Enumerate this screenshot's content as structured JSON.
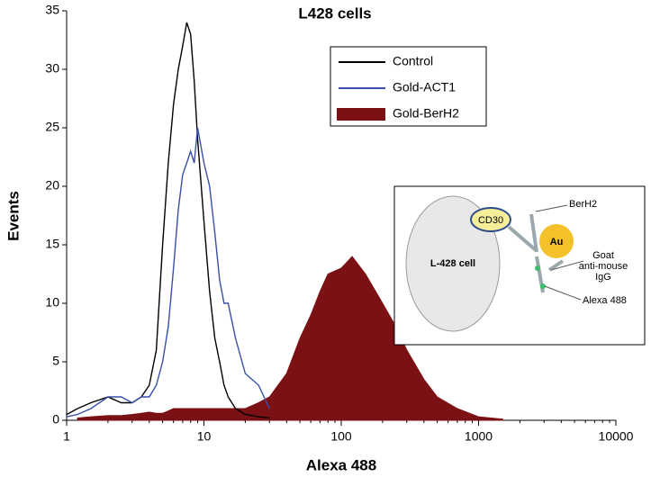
{
  "chart_data": {
    "type": "line",
    "title": "L428 cells",
    "x_label": "Alexa 488",
    "y_label": "Events",
    "xscale": "log",
    "xlim": [
      1,
      10000
    ],
    "xticks": [
      1,
      10,
      100,
      1000,
      10000
    ],
    "ylim": [
      0,
      35
    ],
    "yticks": [
      0,
      5,
      10,
      15,
      20,
      25,
      30,
      35
    ],
    "legend": "top-center",
    "x": [
      1,
      1.2,
      1.5,
      2,
      2.5,
      3,
      3.5,
      4,
      4.5,
      5,
      5.5,
      6,
      6.5,
      7,
      7.5,
      8,
      8.5,
      9,
      10,
      11,
      12,
      13,
      14,
      15,
      17,
      20,
      25,
      30,
      40,
      50,
      60,
      70,
      80,
      100,
      120,
      150,
      200,
      250,
      300,
      400,
      500,
      700,
      1000,
      1500
    ],
    "series": [
      {
        "name": "Control",
        "color": "#000000",
        "kind": "line",
        "values": [
          0.5,
          1,
          1.5,
          2,
          1.5,
          1.5,
          2,
          3,
          6,
          15,
          22,
          27,
          30,
          32,
          34,
          33,
          29,
          24,
          17,
          11,
          7,
          5,
          3,
          2,
          1,
          0.5,
          0.3,
          0.2,
          null,
          null,
          null,
          null,
          null,
          null,
          null,
          null,
          null,
          null,
          null,
          null,
          null,
          null,
          null,
          null
        ]
      },
      {
        "name": "Gold-ACT1",
        "color": "#3a4fa8",
        "kind": "line",
        "values": [
          0.3,
          0.5,
          1,
          2,
          2,
          1.5,
          2,
          2,
          3,
          5,
          8,
          13,
          18,
          21,
          22,
          23,
          22,
          25,
          22,
          20,
          16,
          12,
          10,
          10,
          7,
          4,
          3,
          1,
          null,
          null,
          null,
          null,
          null,
          null,
          null,
          null,
          null,
          null,
          null,
          null,
          null,
          null,
          null,
          null
        ]
      },
      {
        "name": "Gold-BerH2",
        "color": "#7b1114",
        "kind": "area",
        "values": [
          null,
          0.2,
          0.3,
          0.4,
          0.4,
          0.5,
          0.6,
          0.7,
          0.6,
          0.6,
          0.8,
          1,
          1,
          1,
          1,
          1,
          1,
          1,
          1,
          1,
          1,
          1,
          1,
          1,
          1,
          1,
          1.5,
          2,
          4,
          7,
          9,
          11,
          12.5,
          13,
          14,
          12.5,
          10,
          8,
          6,
          3.5,
          2,
          1,
          0.3,
          0.1
        ]
      }
    ],
    "inset": {
      "cell": "L-428 cell",
      "receptor": "CD30",
      "antibody": "BerH2",
      "gold": "Au",
      "secondary": "Goat\nanti-mouse\nIgG",
      "dye": "Alexa 488"
    }
  }
}
